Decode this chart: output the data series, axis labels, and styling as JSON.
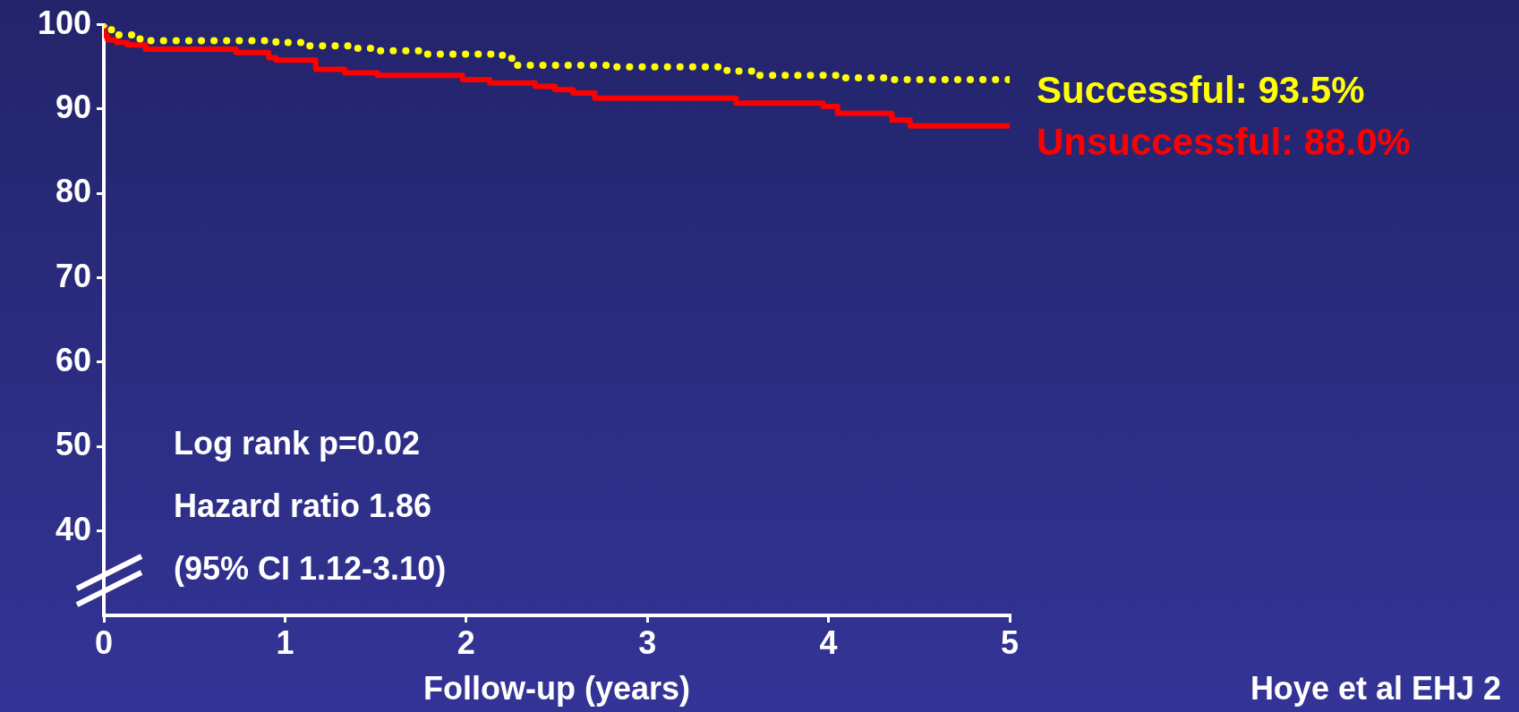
{
  "chart_data": {
    "type": "step",
    "xlabel": "Follow-up (years)",
    "xlim": [
      0,
      5
    ],
    "xticks": [
      0,
      1,
      2,
      3,
      4,
      5
    ],
    "ylim": [
      30,
      100
    ],
    "yticks": [
      40,
      50,
      60,
      70,
      80,
      90,
      100
    ],
    "grid": false,
    "legend": false,
    "series": [
      {
        "name": "Successful: 93.5%",
        "color": "#ffff00",
        "line_style": "dotted",
        "x": [
          0,
          0.05,
          0.2,
          0.95,
          1.13,
          1.39,
          1.49,
          1.76,
          2.2,
          2.27,
          2.8,
          3.44,
          3.6,
          4.05,
          4.34,
          4.94,
          5
        ],
        "values": [
          100,
          99.4,
          98.8,
          98.1,
          97.9,
          97.5,
          97.2,
          96.9,
          96.5,
          96.0,
          95.2,
          95.0,
          94.5,
          94.0,
          93.7,
          93.5,
          93.5
        ]
      },
      {
        "name": "Unsuccessful: 88.0%",
        "color": "#ff0000",
        "line_style": "solid",
        "x": [
          0,
          0.02,
          0.07,
          0.13,
          0.23,
          0.73,
          0.91,
          0.95,
          1.17,
          1.33,
          1.51,
          1.98,
          2.13,
          2.38,
          2.49,
          2.59,
          2.71,
          3.49,
          3.97,
          4.05,
          4.35,
          4.45,
          4.5,
          5
        ],
        "values": [
          100,
          98.7,
          98.2,
          97.9,
          97.6,
          97.1,
          96.7,
          96.1,
          95.8,
          94.7,
          94.3,
          94.0,
          93.5,
          93.1,
          92.7,
          92.3,
          91.9,
          91.3,
          90.7,
          90.3,
          89.5,
          88.7,
          88.0,
          88.0
        ]
      }
    ],
    "annotations": [
      "Log rank p=0.02",
      "Hazard ratio 1.86",
      "(95% CI 1.12-3.10)",
      "Hoye et al EHJ 2"
    ]
  }
}
